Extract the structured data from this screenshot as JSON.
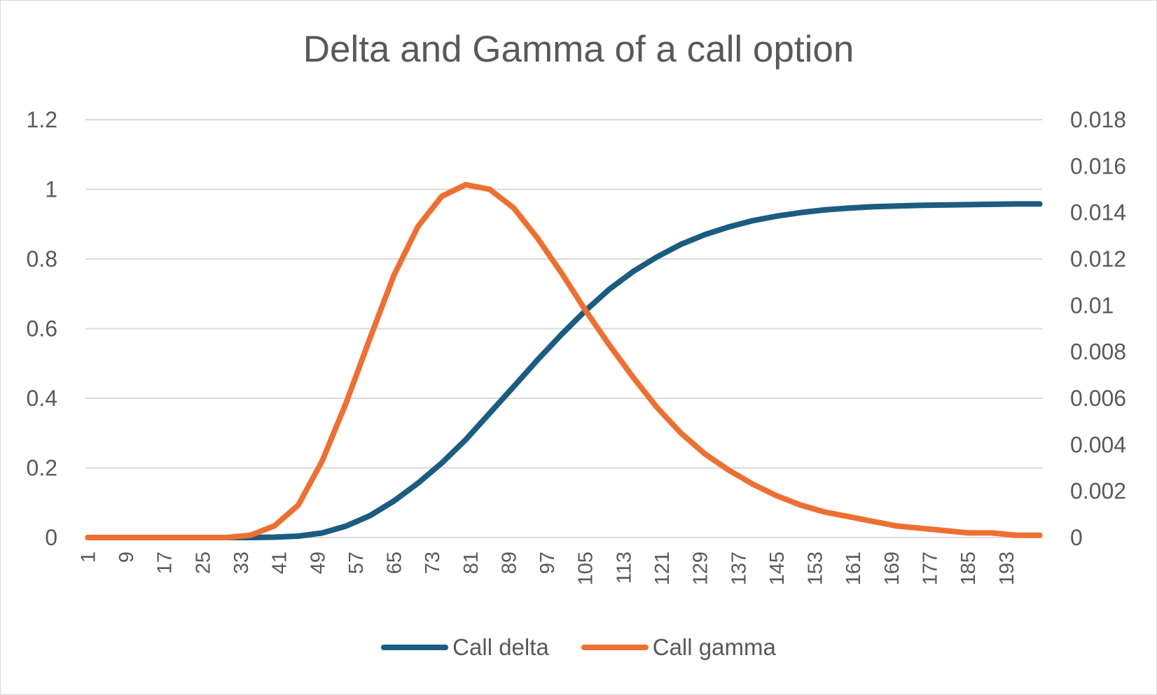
{
  "colors": {
    "delta": "#1b5c80",
    "gamma": "#ed7033",
    "grid": "#d9d9d9",
    "text": "#595959"
  },
  "chart_data": {
    "type": "line",
    "title": "Delta and Gamma of a call option",
    "xlabel": "",
    "ylabel": "",
    "x_range": [
      1,
      200
    ],
    "x_tick_labels": [
      "1",
      "9",
      "17",
      "25",
      "33",
      "41",
      "49",
      "57",
      "65",
      "73",
      "81",
      "89",
      "97",
      "105",
      "113",
      "121",
      "129",
      "137",
      "145",
      "153",
      "161",
      "169",
      "177",
      "185",
      "193"
    ],
    "y_left": {
      "range": [
        0,
        1.2
      ],
      "tick_labels": [
        "0",
        "0.2",
        "0.4",
        "0.6",
        "0.8",
        "1",
        "1.2"
      ]
    },
    "y_right": {
      "range": [
        0,
        0.018
      ],
      "tick_labels": [
        "0",
        "0.002",
        "0.004",
        "0.006",
        "0.008",
        "0.01",
        "0.012",
        "0.014",
        "0.016",
        "0.018"
      ]
    },
    "grid": true,
    "legend_position": "bottom",
    "series": [
      {
        "name": "Call delta",
        "axis": "left",
        "x": [
          1,
          10,
          20,
          30,
          35,
          40,
          45,
          50,
          55,
          60,
          65,
          70,
          75,
          80,
          85,
          90,
          95,
          100,
          105,
          110,
          115,
          120,
          125,
          130,
          135,
          140,
          145,
          150,
          155,
          160,
          165,
          170,
          175,
          180,
          185,
          190,
          195,
          200
        ],
        "values": [
          0,
          0,
          0,
          0,
          0,
          0.001,
          0.004,
          0.013,
          0.033,
          0.063,
          0.105,
          0.156,
          0.214,
          0.281,
          0.357,
          0.433,
          0.51,
          0.583,
          0.651,
          0.713,
          0.764,
          0.806,
          0.842,
          0.87,
          0.892,
          0.91,
          0.923,
          0.933,
          0.941,
          0.946,
          0.95,
          0.952,
          0.954,
          0.955,
          0.956,
          0.957,
          0.958,
          0.958
        ]
      },
      {
        "name": "Call gamma",
        "axis": "right",
        "x": [
          1,
          10,
          20,
          30,
          35,
          40,
          45,
          50,
          55,
          60,
          65,
          70,
          75,
          80,
          85,
          90,
          95,
          100,
          105,
          110,
          115,
          120,
          125,
          130,
          135,
          140,
          145,
          150,
          155,
          160,
          165,
          170,
          175,
          180,
          185,
          190,
          195,
          200
        ],
        "values": [
          0,
          0,
          0,
          0,
          0.0001,
          0.0005,
          0.0014,
          0.0033,
          0.0058,
          0.0086,
          0.0113,
          0.0134,
          0.0147,
          0.0152,
          0.015,
          0.0142,
          0.0129,
          0.0114,
          0.0098,
          0.0083,
          0.0069,
          0.0056,
          0.0045,
          0.0036,
          0.0029,
          0.0023,
          0.0018,
          0.0014,
          0.0011,
          0.0009,
          0.0007,
          0.0005,
          0.0004,
          0.0003,
          0.0002,
          0.0002,
          0.0001,
          0.0001
        ]
      }
    ]
  }
}
